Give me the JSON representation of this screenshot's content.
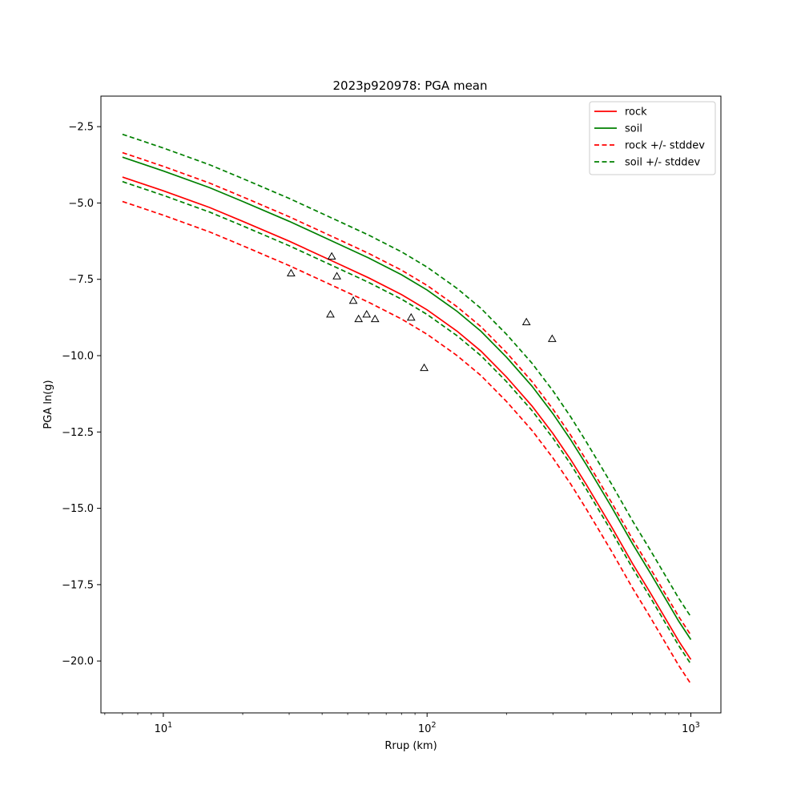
{
  "chart_data": {
    "type": "line",
    "title": "2023p920978: PGA mean",
    "xlabel": "Rrup (km)",
    "ylabel": "PGA ln(g)",
    "xscale": "log",
    "xlim": [
      5.8,
      1300
    ],
    "ylim": [
      -21.7,
      -1.5
    ],
    "grid": false,
    "legend_position": "top-right",
    "x_ticks": [
      {
        "value": 10,
        "base": "10",
        "exp": "1"
      },
      {
        "value": 100,
        "base": "10",
        "exp": "2"
      },
      {
        "value": 1000,
        "base": "10",
        "exp": "3"
      }
    ],
    "y_ticks": [
      {
        "value": -2.5,
        "label": "−2.5"
      },
      {
        "value": -5.0,
        "label": "−5.0"
      },
      {
        "value": -7.5,
        "label": "−7.5"
      },
      {
        "value": -10.0,
        "label": "−10.0"
      },
      {
        "value": -12.5,
        "label": "−12.5"
      },
      {
        "value": -15.0,
        "label": "−15.0"
      },
      {
        "value": -17.5,
        "label": "−17.5"
      },
      {
        "value": -20.0,
        "label": "−20.0"
      }
    ],
    "x": [
      7,
      10,
      15,
      20,
      30,
      45,
      60,
      80,
      100,
      130,
      160,
      200,
      250,
      300,
      350,
      400,
      500,
      600,
      700,
      800,
      900,
      1000
    ],
    "series": [
      {
        "name": "rock",
        "color": "#ff0000",
        "dash": false,
        "values": [
          -4.15,
          -4.6,
          -5.15,
          -5.6,
          -6.25,
          -6.95,
          -7.45,
          -8.0,
          -8.5,
          -9.2,
          -9.85,
          -10.7,
          -11.65,
          -12.55,
          -13.4,
          -14.2,
          -15.6,
          -16.8,
          -17.75,
          -18.6,
          -19.35,
          -19.95
        ]
      },
      {
        "name": "soil",
        "color": "#008000",
        "dash": false,
        "values": [
          -3.5,
          -3.95,
          -4.5,
          -4.95,
          -5.6,
          -6.3,
          -6.8,
          -7.35,
          -7.85,
          -8.55,
          -9.2,
          -10.05,
          -11.0,
          -11.9,
          -12.75,
          -13.55,
          -14.95,
          -16.15,
          -17.1,
          -17.95,
          -18.7,
          -19.3
        ]
      },
      {
        "name": "rock +/- stddev",
        "color": "#ff0000",
        "dash": true,
        "values": [
          -3.35,
          -3.8,
          -4.35,
          -4.8,
          -5.45,
          -6.15,
          -6.65,
          -7.2,
          -7.7,
          -8.4,
          -9.05,
          -9.9,
          -10.85,
          -11.75,
          -12.6,
          -13.4,
          -14.8,
          -16.0,
          -16.95,
          -17.8,
          -18.55,
          -19.15
        ]
      },
      {
        "name": "",
        "color": "#ff0000",
        "dash": true,
        "values": [
          -4.95,
          -5.4,
          -5.95,
          -6.4,
          -7.05,
          -7.75,
          -8.25,
          -8.8,
          -9.3,
          -10.0,
          -10.65,
          -11.5,
          -12.45,
          -13.35,
          -14.2,
          -15.0,
          -16.4,
          -17.6,
          -18.55,
          -19.4,
          -20.15,
          -20.75
        ]
      },
      {
        "name": "soil +/- stddev",
        "color": "#008000",
        "dash": true,
        "values": [
          -2.75,
          -3.2,
          -3.75,
          -4.2,
          -4.85,
          -5.55,
          -6.05,
          -6.6,
          -7.1,
          -7.8,
          -8.45,
          -9.3,
          -10.25,
          -11.15,
          -12.0,
          -12.8,
          -14.2,
          -15.4,
          -16.35,
          -17.2,
          -17.95,
          -18.55
        ]
      },
      {
        "name": "",
        "color": "#008000",
        "dash": true,
        "values": [
          -4.3,
          -4.75,
          -5.3,
          -5.75,
          -6.4,
          -7.1,
          -7.6,
          -8.15,
          -8.65,
          -9.35,
          -10.0,
          -10.85,
          -11.8,
          -12.7,
          -13.55,
          -14.35,
          -15.75,
          -16.95,
          -17.9,
          -18.75,
          -19.5,
          -20.1
        ]
      }
    ],
    "observations": [
      {
        "x": 30.5,
        "y": -7.3
      },
      {
        "x": 43.5,
        "y": -6.75
      },
      {
        "x": 43.0,
        "y": -8.65
      },
      {
        "x": 45.5,
        "y": -7.4
      },
      {
        "x": 52.5,
        "y": -8.2
      },
      {
        "x": 55.0,
        "y": -8.8
      },
      {
        "x": 59.0,
        "y": -8.65
      },
      {
        "x": 63.5,
        "y": -8.8
      },
      {
        "x": 87.0,
        "y": -8.75
      },
      {
        "x": 97.5,
        "y": -10.4
      },
      {
        "x": 238.0,
        "y": -8.9
      },
      {
        "x": 298.0,
        "y": -9.45
      }
    ],
    "legend": [
      {
        "label": "rock",
        "color": "#ff0000",
        "dash": false
      },
      {
        "label": "soil",
        "color": "#008000",
        "dash": false
      },
      {
        "label": "rock +/- stddev",
        "color": "#ff0000",
        "dash": true
      },
      {
        "label": "soil +/- stddev",
        "color": "#008000",
        "dash": true
      }
    ]
  }
}
